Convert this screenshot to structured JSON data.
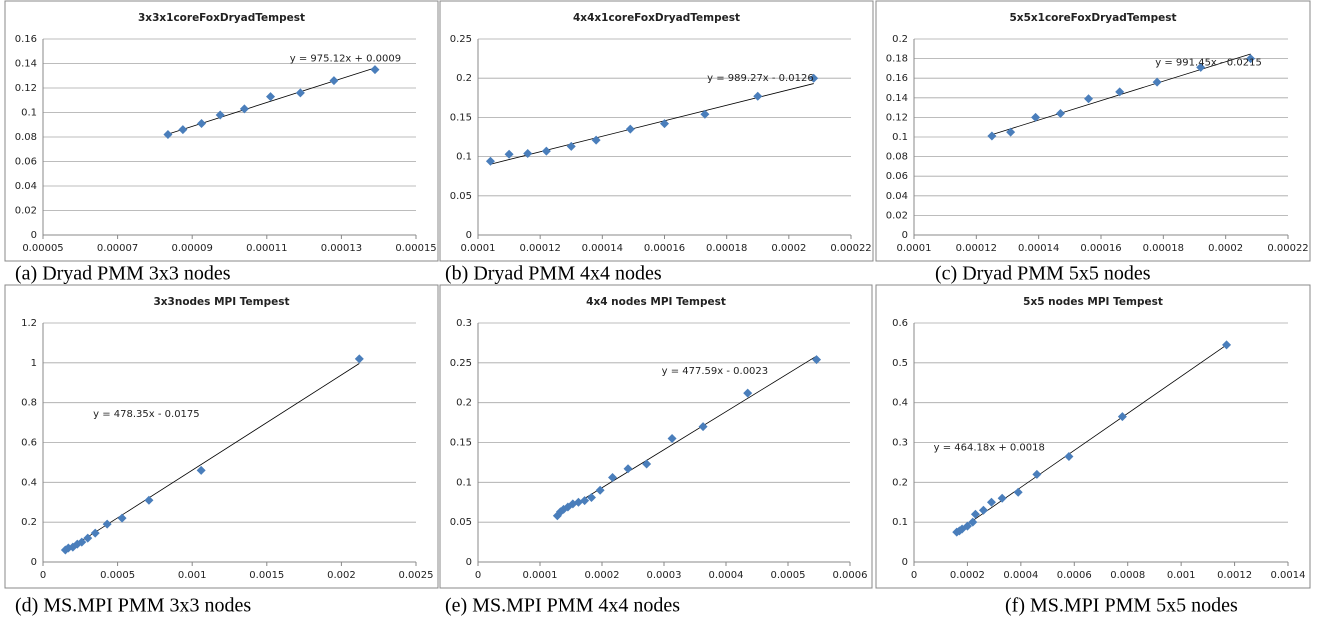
{
  "chart_data": [
    {
      "type": "scatter",
      "title": "3x3x1coreFoxDryadTempest",
      "caption": "(a)  Dryad PMM 3x3 nodes",
      "color": "#4a7ebb",
      "grid": true,
      "x": [
        8.35e-05,
        8.75e-05,
        9.25e-05,
        9.75e-05,
        0.000104,
        0.000111,
        0.000119,
        0.000128,
        0.000139
      ],
      "y": [
        0.082,
        0.086,
        0.091,
        0.098,
        0.103,
        0.113,
        0.116,
        0.126,
        0.135
      ],
      "xlim": [
        5e-05,
        0.00015
      ],
      "xticks": [
        5e-05,
        7e-05,
        9e-05,
        0.00011,
        0.00013,
        0.00015
      ],
      "ylim": [
        0,
        0.16
      ],
      "yticks": [
        0,
        0.02,
        0.04,
        0.06,
        0.08,
        0.1,
        0.12,
        0.14,
        0.16
      ],
      "trendline": {
        "slope": 975.12,
        "intercept": 0.0009,
        "label": "y = 975.12x + 0.0009"
      }
    },
    {
      "type": "scatter",
      "title": "4x4x1coreFoxDryadTempest",
      "caption": "(b) Dryad PMM 4x4 nodes",
      "color": "#4a7ebb",
      "grid": true,
      "x": [
        0.000104,
        0.00011,
        0.000116,
        0.000122,
        0.00013,
        0.000138,
        0.000149,
        0.00016,
        0.000173,
        0.00019,
        0.000208
      ],
      "y": [
        0.094,
        0.103,
        0.104,
        0.107,
        0.113,
        0.121,
        0.135,
        0.142,
        0.154,
        0.177,
        0.2
      ],
      "xlim": [
        0.0001,
        0.00022
      ],
      "xticks": [
        0.0001,
        0.00012,
        0.00014,
        0.00016,
        0.00018,
        0.0002,
        0.00022
      ],
      "ylim": [
        0,
        0.25
      ],
      "yticks": [
        0,
        0.05,
        0.1,
        0.15,
        0.2,
        0.25
      ],
      "trendline": {
        "slope": 989.27,
        "intercept": -0.0126,
        "label": "y = 989.27x - 0.0126"
      }
    },
    {
      "type": "scatter",
      "title": "5x5x1coreFoxDryadTempest",
      "caption": "(c) Dryad PMM 5x5 nodes",
      "color": "#4a7ebb",
      "grid": true,
      "x": [
        0.000125,
        0.000131,
        0.000139,
        0.000147,
        0.000156,
        0.000166,
        0.000178,
        0.000192,
        0.000208
      ],
      "y": [
        0.101,
        0.105,
        0.12,
        0.124,
        0.139,
        0.146,
        0.156,
        0.171,
        0.18
      ],
      "xlim": [
        0.0001,
        0.00022
      ],
      "xticks": [
        0.0001,
        0.00012,
        0.00014,
        0.00016,
        0.00018,
        0.0002,
        0.00022
      ],
      "ylim": [
        0,
        0.2
      ],
      "yticks": [
        0,
        0.02,
        0.04,
        0.06,
        0.08,
        0.1,
        0.12,
        0.14,
        0.16,
        0.18,
        0.2
      ],
      "trendline": {
        "slope": 991.45,
        "intercept": -0.0215,
        "label": "y = 991.45x - 0.0215"
      }
    },
    {
      "type": "scatter",
      "title": "3x3nodes MPI Tempest",
      "caption": "(d)          MS.MPI PMM 3x3 nodes",
      "color": "#4a7ebb",
      "grid": true,
      "x": [
        0.00015,
        0.00017,
        0.0002,
        0.00023,
        0.00026,
        0.0003,
        0.00035,
        0.00043,
        0.00053,
        0.00071,
        0.00106,
        0.00212
      ],
      "y": [
        0.06,
        0.07,
        0.075,
        0.09,
        0.1,
        0.12,
        0.145,
        0.19,
        0.22,
        0.31,
        0.46,
        1.02
      ],
      "xlim": [
        0,
        0.0025
      ],
      "xticks": [
        0,
        0.0005,
        0.001,
        0.0015,
        0.002,
        0.0025
      ],
      "ylim": [
        0,
        1.2
      ],
      "yticks": [
        0,
        0.2,
        0.4,
        0.6,
        0.8,
        1,
        1.2
      ],
      "trendline": {
        "slope": 478.35,
        "intercept": -0.0175,
        "label": "y = 478.35x - 0.0175"
      }
    },
    {
      "type": "scatter",
      "title": "4x4 nodes MPI Tempest",
      "caption": "(e) MS.MPI PMM 4x4 nodes",
      "color": "#4a7ebb",
      "grid": true,
      "x": [
        0.000128,
        0.000133,
        0.000138,
        0.000145,
        0.000153,
        0.000162,
        0.000172,
        0.000183,
        0.000197,
        0.000217,
        0.000242,
        0.000272,
        0.000313,
        0.000363,
        0.000435,
        0.000546
      ],
      "y": [
        0.058,
        0.063,
        0.066,
        0.069,
        0.073,
        0.075,
        0.077,
        0.081,
        0.09,
        0.106,
        0.117,
        0.123,
        0.155,
        0.17,
        0.212,
        0.254
      ],
      "xlim": [
        0,
        0.0006
      ],
      "xticks": [
        0,
        0.0001,
        0.0002,
        0.0003,
        0.0004,
        0.0005,
        0.0006
      ],
      "ylim": [
        0,
        0.3
      ],
      "yticks": [
        0,
        0.05,
        0.1,
        0.15,
        0.2,
        0.25,
        0.3
      ],
      "trendline": {
        "slope": 477.59,
        "intercept": -0.0023,
        "label": "y = 477.59x - 0.0023"
      }
    },
    {
      "type": "scatter",
      "title": "5x5 nodes MPI Tempest",
      "caption": "(f) MS.MPI PMM 5x5 nodes",
      "color": "#4a7ebb",
      "grid": true,
      "x": [
        0.00016,
        0.00017,
        0.00018,
        0.0002,
        0.00022,
        0.00023,
        0.00026,
        0.00029,
        0.00033,
        0.00039,
        0.00046,
        0.00058,
        0.00078,
        0.00117
      ],
      "y": [
        0.075,
        0.078,
        0.083,
        0.09,
        0.1,
        0.12,
        0.13,
        0.15,
        0.16,
        0.175,
        0.22,
        0.265,
        0.365,
        0.545
      ],
      "xlim": [
        0,
        0.0014
      ],
      "xticks": [
        0,
        0.0002,
        0.0004,
        0.0006,
        0.0008,
        0.001,
        0.0012,
        0.0014
      ],
      "ylim": [
        0,
        0.6
      ],
      "yticks": [
        0,
        0.1,
        0.2,
        0.3,
        0.4,
        0.5,
        0.6
      ],
      "trendline": {
        "slope": 464.18,
        "intercept": 0.0018,
        "label": "y = 464.18x + 0.0018"
      }
    }
  ]
}
